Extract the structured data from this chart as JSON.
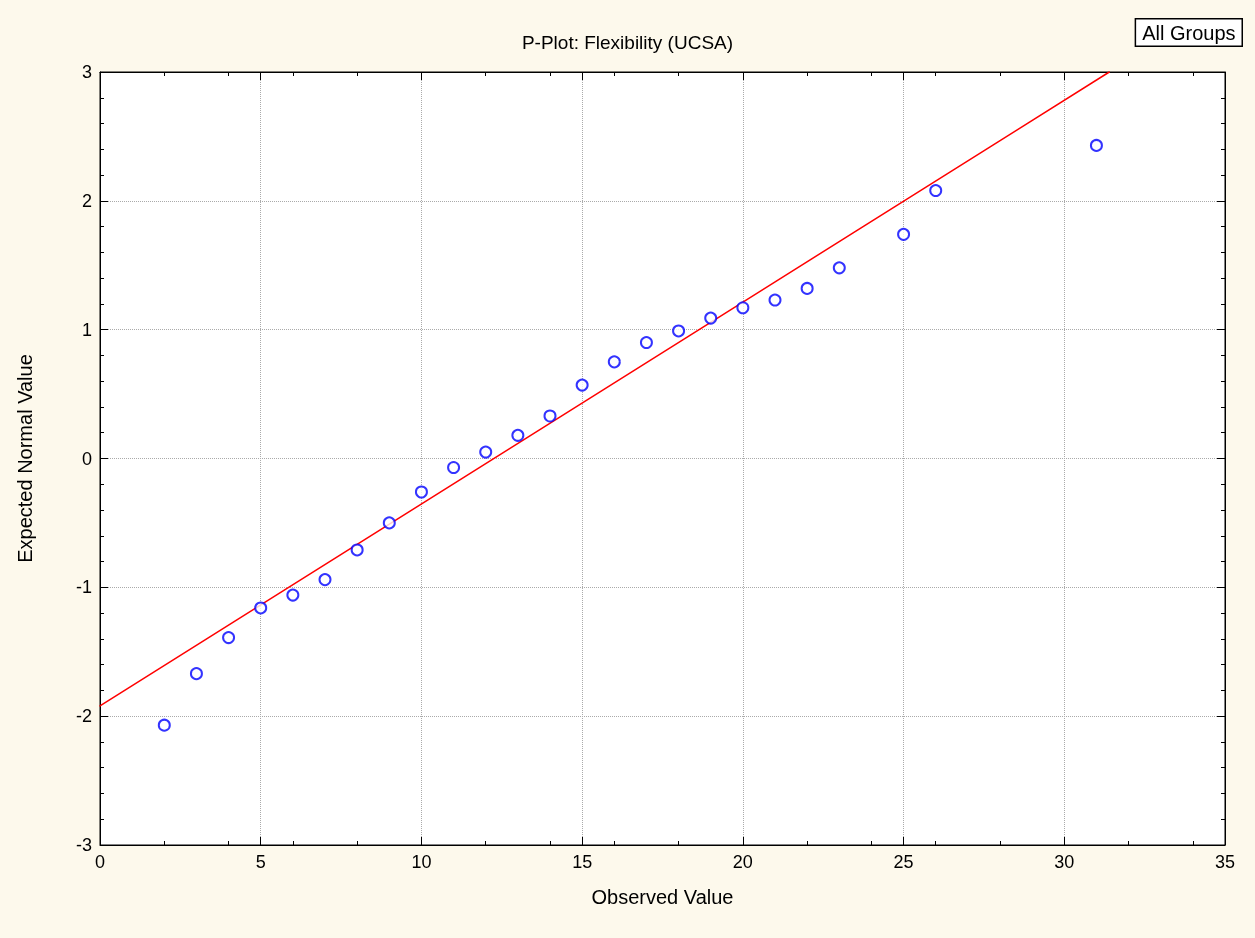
{
  "chart_data": {
    "type": "scatter",
    "title": "P-Plot: Flexibility (UCSA)",
    "xlabel": "Observed Value",
    "ylabel": "Expected Normal Value",
    "annotations": [
      "All Groups"
    ],
    "xlim": [
      0,
      35
    ],
    "xticks": [
      0,
      5,
      10,
      15,
      20,
      25,
      30,
      35
    ],
    "ylim": [
      -3,
      3
    ],
    "yticks": [
      -3,
      -2,
      -1,
      0,
      1,
      2,
      3
    ],
    "grid": true,
    "marker": "circle",
    "series": [
      {
        "color": "#0000ff",
        "x": [
          2,
          3,
          4,
          5,
          6,
          7,
          8,
          9,
          10,
          11,
          12,
          13,
          14,
          15,
          16,
          17,
          18,
          19,
          20,
          21,
          22,
          23,
          25,
          26,
          31
        ],
        "values": [
          -2.07,
          -1.67,
          -1.39,
          -1.16,
          -1.06,
          -0.94,
          -0.71,
          -0.5,
          -0.26,
          -0.07,
          0.05,
          0.18,
          0.33,
          0.57,
          0.75,
          0.9,
          0.99,
          1.09,
          1.17,
          1.23,
          1.32,
          1.48,
          1.74,
          2.08,
          2.43
        ]
      },
      {
        "type": "line",
        "color": "#ff0000",
        "x": [
          0,
          31.4
        ],
        "values": [
          -1.92,
          3
        ],
        "line_style": "solid",
        "marker": "none"
      }
    ]
  }
}
